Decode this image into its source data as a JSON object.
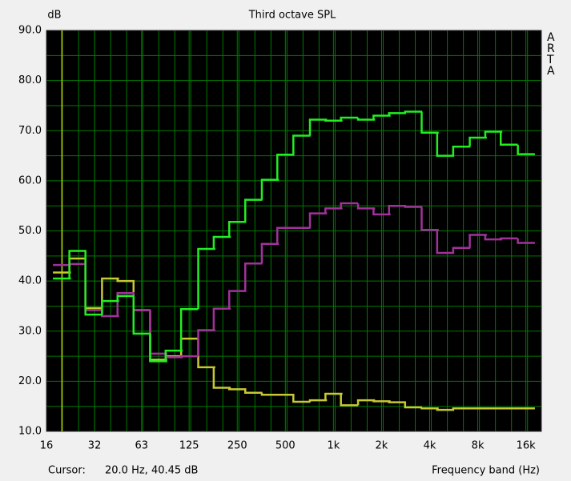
{
  "chart_data": {
    "type": "step",
    "title": "Third octave SPL",
    "y_label": "dB",
    "x_label": "Frequency band (Hz)",
    "brand": "ARTA",
    "cursor": {
      "prefix": "Cursor:",
      "x": 20,
      "readout": "20.0 Hz, 40.45 dB",
      "color": "#c8c000"
    },
    "x": [
      20,
      25,
      31.5,
      40,
      50,
      63,
      80,
      100,
      125,
      160,
      200,
      250,
      315,
      400,
      500,
      630,
      800,
      1000,
      1250,
      1600,
      2000,
      2500,
      3150,
      4000,
      5000,
      6300,
      8000,
      10000,
      12500,
      16000
    ],
    "xlim": [
      16,
      20000
    ],
    "log_x": true,
    "xticks": [
      16,
      32,
      63,
      125,
      250,
      500,
      {
        "value": 1000,
        "label": "1k"
      },
      {
        "value": 2000,
        "label": "2k"
      },
      {
        "value": 4000,
        "label": "4k"
      },
      {
        "value": 8000,
        "label": "8k"
      },
      {
        "value": 16000,
        "label": "16k"
      }
    ],
    "ylim": [
      10,
      90
    ],
    "yticks": [
      {
        "value": 10,
        "label": "10.0"
      },
      {
        "value": 20,
        "label": "20.0"
      },
      {
        "value": 30,
        "label": "30.0"
      },
      {
        "value": 40,
        "label": "40.0"
      },
      {
        "value": 50,
        "label": "50.0"
      },
      {
        "value": 60,
        "label": "60.0"
      },
      {
        "value": 70,
        "label": "70.0"
      },
      {
        "value": 80,
        "label": "80.0"
      },
      {
        "value": 90,
        "label": "90.0"
      }
    ],
    "grid": true,
    "series": [
      {
        "color": "#c8c832",
        "values": [
          41.7,
          44.5,
          34.6,
          40.5,
          40.0,
          34.2,
          24.3,
          25.0,
          28.5,
          22.8,
          18.7,
          18.4,
          17.7,
          17.3,
          17.3,
          15.9,
          16.2,
          17.5,
          15.2,
          16.2,
          16.0,
          15.8,
          14.8,
          14.6,
          14.3,
          14.6,
          14.6,
          14.6,
          14.6,
          14.6
        ]
      },
      {
        "color": "#a0329a",
        "values": [
          43.2,
          43.4,
          34.2,
          33.0,
          37.6,
          34.2,
          25.5,
          24.8,
          25.0,
          30.2,
          34.5,
          38.0,
          43.5,
          47.4,
          50.6,
          50.6,
          53.5,
          54.5,
          55.5,
          54.5,
          53.3,
          55.0,
          54.8,
          50.2,
          45.6,
          46.6,
          49.2,
          48.3,
          48.5,
          47.6
        ]
      },
      {
        "color": "#22ee22",
        "values": [
          40.5,
          46.0,
          33.3,
          36.0,
          37.0,
          29.5,
          24.0,
          26.1,
          34.4,
          46.4,
          48.8,
          51.8,
          56.2,
          60.2,
          65.2,
          69.0,
          72.2,
          72.0,
          72.6,
          72.2,
          73.0,
          73.5,
          73.8,
          69.6,
          65.0,
          66.8,
          68.6,
          69.8,
          67.2,
          65.3
        ]
      }
    ]
  }
}
